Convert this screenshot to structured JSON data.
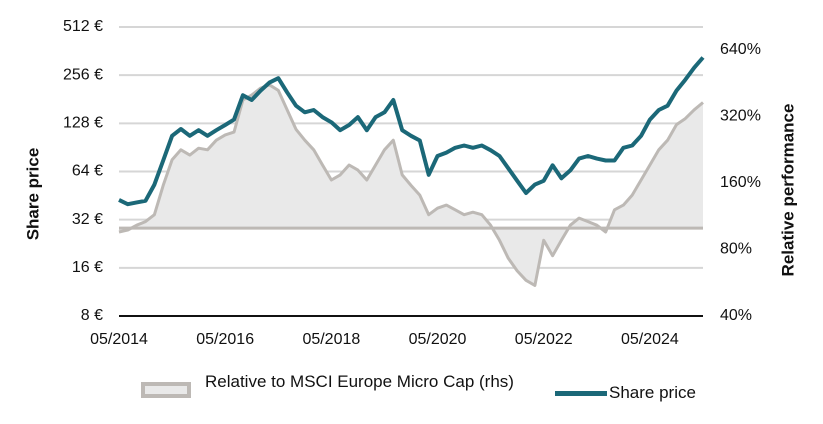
{
  "chart_data": {
    "type": "line",
    "y_label": "Share price",
    "y2_label": "Relative performance",
    "log_y": true,
    "log_y2": true,
    "grid": true,
    "x": [
      "2014-05",
      "2014-07",
      "2014-09",
      "2014-11",
      "2015-01",
      "2015-03",
      "2015-05",
      "2015-07",
      "2015-09",
      "2015-11",
      "2016-01",
      "2016-03",
      "2016-05",
      "2016-07",
      "2016-09",
      "2016-11",
      "2017-01",
      "2017-03",
      "2017-05",
      "2017-07",
      "2017-09",
      "2017-11",
      "2018-01",
      "2018-03",
      "2018-05",
      "2018-07",
      "2018-09",
      "2018-11",
      "2019-01",
      "2019-03",
      "2019-05",
      "2019-07",
      "2019-09",
      "2019-11",
      "2020-01",
      "2020-03",
      "2020-05",
      "2020-07",
      "2020-09",
      "2020-11",
      "2021-01",
      "2021-03",
      "2021-05",
      "2021-07",
      "2021-09",
      "2021-11",
      "2022-01",
      "2022-03",
      "2022-05",
      "2022-07",
      "2022-09",
      "2022-11",
      "2023-01",
      "2023-03",
      "2023-05",
      "2023-07",
      "2023-09",
      "2023-11",
      "2024-01",
      "2024-03",
      "2024-05",
      "2024-07",
      "2024-09",
      "2024-11",
      "2025-01",
      "2025-03",
      "2025-05"
    ],
    "xlim": [
      "2014-05",
      "2025-05"
    ],
    "xticks": [
      {
        "value": "2014-05",
        "label": "05/2014"
      },
      {
        "value": "2016-05",
        "label": "05/2016"
      },
      {
        "value": "2018-05",
        "label": "05/2018"
      },
      {
        "value": "2020-05",
        "label": "05/2020"
      },
      {
        "value": "2022-05",
        "label": "05/2022"
      },
      {
        "value": "2024-05",
        "label": "05/2024"
      }
    ],
    "ylim": [
      8,
      512
    ],
    "yticks": [
      {
        "value": 8,
        "label": "8 €"
      },
      {
        "value": 16,
        "label": "16 €"
      },
      {
        "value": 32,
        "label": "32 €"
      },
      {
        "value": 64,
        "label": "64 €"
      },
      {
        "value": 128,
        "label": "128 €"
      },
      {
        "value": 256,
        "label": "256 €"
      },
      {
        "value": 512,
        "label": "512 €"
      }
    ],
    "y2lim": [
      40,
      813
    ],
    "y2ticks": [
      {
        "value": 40,
        "label": "40%"
      },
      {
        "value": 80,
        "label": "80%"
      },
      {
        "value": 160,
        "label": "160%"
      },
      {
        "value": 320,
        "label": "320%"
      },
      {
        "value": 640,
        "label": "640%"
      }
    ],
    "series": [
      {
        "name": "Relative to MSCI Europe Micro Cap (rhs)",
        "color": "#bdb9b5",
        "fill": "#e9e9e9",
        "axis": "y2",
        "baseline": 100,
        "values": [
          96,
          98,
          103,
          107,
          115,
          156,
          204,
          226,
          214,
          230,
          226,
          250,
          264,
          272,
          380,
          400,
          430,
          445,
          420,
          343,
          280,
          250,
          226,
          193,
          165,
          174,
          193,
          183,
          165,
          193,
          226,
          250,
          174,
          156,
          141,
          115,
          123,
          127,
          121,
          115,
          118,
          115,
          103,
          88,
          73,
          64,
          58,
          55,
          88,
          75,
          88,
          103,
          111,
          107,
          103,
          96,
          121,
          127,
          141,
          165,
          193,
          226,
          250,
          294,
          313,
          343,
          370
        ]
      },
      {
        "name": "Share price",
        "color": "#1b6878",
        "axis": "y",
        "values": [
          42.5,
          40,
          41,
          42,
          53,
          75,
          107,
          118,
          107,
          116,
          107,
          116,
          125,
          135,
          192,
          179,
          205,
          230,
          245,
          200,
          165,
          150,
          155,
          140,
          130,
          116,
          125,
          140,
          116,
          140,
          150,
          179,
          116,
          107,
          100,
          61,
          80,
          84,
          90,
          93,
          90,
          93,
          87,
          80,
          67,
          56,
          47,
          53,
          56,
          70,
          58,
          65,
          77,
          80,
          77,
          75,
          75,
          90,
          93,
          107,
          135,
          155,
          165,
          205,
          240,
          285,
          330
        ]
      }
    ]
  }
}
